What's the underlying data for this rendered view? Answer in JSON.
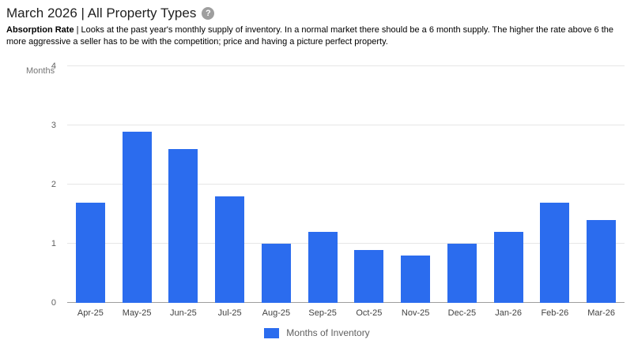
{
  "header": {
    "title": "March 2026 | All Property Types",
    "help_icon": "?"
  },
  "description": {
    "bold": "Absorption Rate",
    "text": " | Looks at the past year's monthly supply of inventory. In a normal market there should be a 6 month supply. The higher the rate above 6 the more aggressive a seller has to be with the competition; price and having a picture perfect property."
  },
  "chart_data": {
    "type": "bar",
    "title": "",
    "xlabel": "",
    "ylabel": "Months",
    "categories": [
      "Apr-25",
      "May-25",
      "Jun-25",
      "Jul-25",
      "Aug-25",
      "Sep-25",
      "Oct-25",
      "Nov-25",
      "Dec-25",
      "Jan-26",
      "Feb-26",
      "Mar-26"
    ],
    "values": [
      1.7,
      2.9,
      2.6,
      1.8,
      1.0,
      1.2,
      0.9,
      0.8,
      1.0,
      1.2,
      1.7,
      1.4
    ],
    "ylim": [
      0,
      4
    ],
    "yticks": [
      0,
      1,
      2,
      3,
      4
    ],
    "grid": true,
    "legend_label": "Months of Inventory",
    "legend_position": "bottom",
    "bar_color": "#2b6cee"
  }
}
